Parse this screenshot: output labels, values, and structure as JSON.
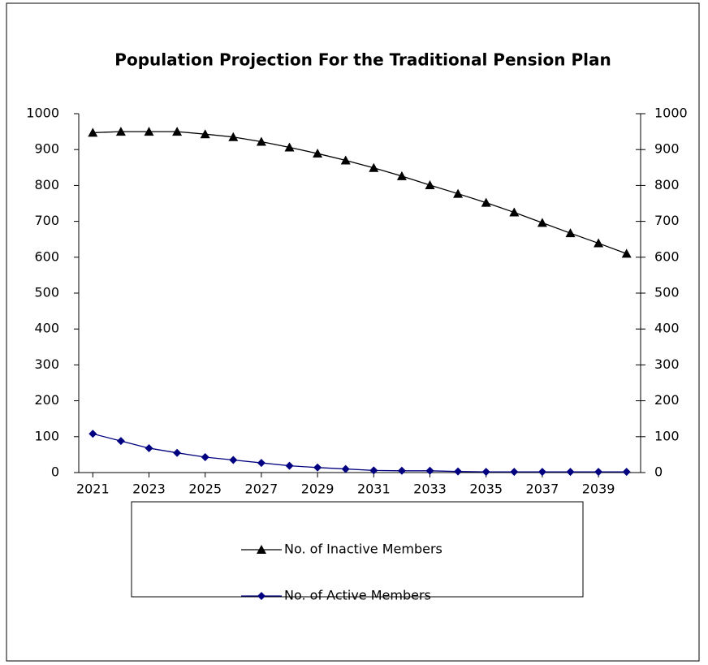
{
  "chart_data": {
    "type": "line",
    "title": "Population Projection For the Traditional Pension Plan",
    "x": [
      2021,
      2022,
      2023,
      2024,
      2025,
      2026,
      2027,
      2028,
      2029,
      2030,
      2031,
      2032,
      2033,
      2034,
      2035,
      2036,
      2037,
      2038,
      2039,
      2040
    ],
    "xlim": [
      2020.5,
      2040.5
    ],
    "xticks": [
      2021,
      2023,
      2025,
      2027,
      2029,
      2031,
      2033,
      2035,
      2037,
      2039
    ],
    "ylim": [
      0,
      1000
    ],
    "yticks": [
      0,
      100,
      200,
      300,
      400,
      500,
      600,
      700,
      800,
      900,
      1000
    ],
    "y2lim": [
      0,
      1000
    ],
    "y2ticks": [
      0,
      100,
      200,
      300,
      400,
      500,
      600,
      700,
      800,
      900,
      1000
    ],
    "grid": false,
    "series": [
      {
        "name": "No. of  Inactive Members",
        "color": "#000000",
        "marker": "triangle",
        "values": [
          947,
          950,
          950,
          950,
          943,
          935,
          922,
          906,
          889,
          870,
          849,
          826,
          801,
          777,
          752,
          725,
          696,
          667,
          639,
          610
        ]
      },
      {
        "name": "No. of  Active Members",
        "color": "#000080",
        "marker": "diamond",
        "values": [
          108,
          88,
          68,
          55,
          43,
          35,
          27,
          19,
          14,
          10,
          6,
          5,
          5,
          3,
          2,
          2,
          2,
          2,
          2,
          2
        ]
      }
    ]
  }
}
